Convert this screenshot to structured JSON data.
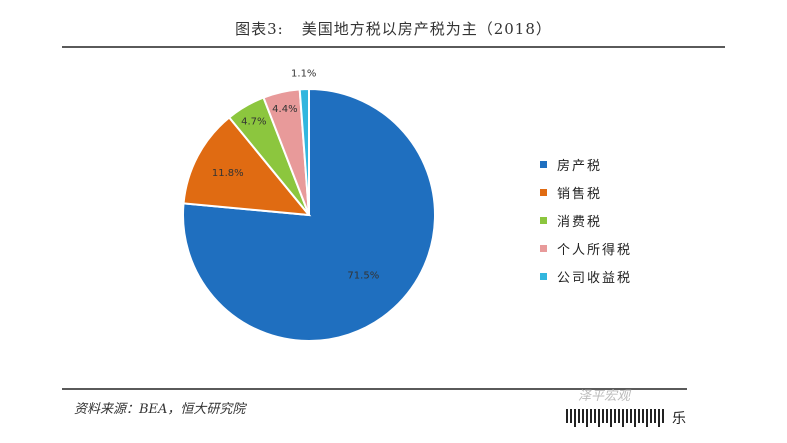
{
  "header": {
    "figure_label": "图表3:",
    "title": "美国地方税以房产税为主（2018）"
  },
  "chart_data": {
    "type": "pie",
    "categories": [
      "房产税",
      "销售税",
      "消费税",
      "个人所得税",
      "公司收益税"
    ],
    "values": [
      71.5,
      11.8,
      4.7,
      4.4,
      1.1
    ],
    "value_labels": [
      "71.5%",
      "11.8%",
      "4.7%",
      "4.4%",
      "1.1%"
    ],
    "colors": [
      "#1f6fbf",
      "#e06b12",
      "#8cc63e",
      "#e89a9a",
      "#32b6de"
    ],
    "legend_position": "right"
  },
  "footer": {
    "source": "资料来源：BEA，恒大研究院",
    "watermark": "泽平宏观",
    "corner_text": "乐"
  }
}
